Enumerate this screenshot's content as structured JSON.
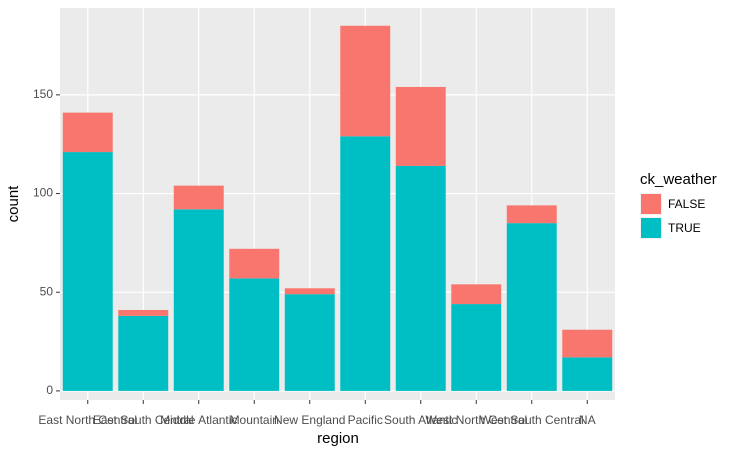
{
  "chart_data": {
    "type": "bar",
    "stacked": true,
    "x_label": "region",
    "y_label": "count",
    "categories": [
      "East North Central",
      "East South Central",
      "Middle Atlantic",
      "Mountain",
      "New England",
      "Pacific",
      "South Atlantic",
      "West North Central",
      "West South Central",
      "NA"
    ],
    "series": [
      {
        "name": "FALSE",
        "color": "#F8766D",
        "values": [
          20,
          3,
          12,
          15,
          3,
          56,
          40,
          10,
          9,
          14
        ]
      },
      {
        "name": "TRUE",
        "color": "#00BFC4",
        "values": [
          121,
          38,
          92,
          57,
          49,
          129,
          114,
          44,
          85,
          17
        ]
      }
    ],
    "legend_title": "ck_weather",
    "ylim": [
      -4.6,
      194
    ],
    "yticks": [
      0,
      50,
      100,
      150
    ],
    "grid": true
  }
}
